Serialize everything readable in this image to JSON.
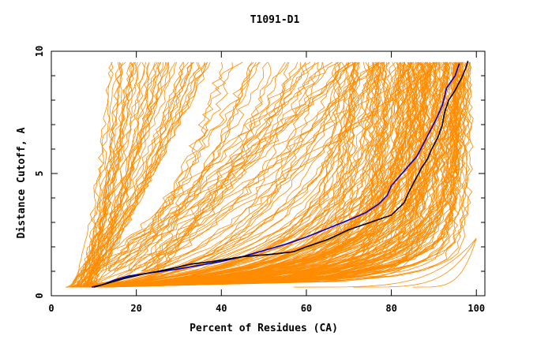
{
  "chart_data": {
    "type": "line",
    "title": "T1091-D1",
    "xlabel": "Percent of Residues (CA)",
    "ylabel": "Distance Cutoff, A",
    "xlim": [
      0,
      102
    ],
    "ylim": [
      0,
      10
    ],
    "x_ticks": [
      0,
      20,
      40,
      60,
      80,
      100
    ],
    "y_ticks": [
      0,
      5,
      10
    ],
    "grid": false,
    "legend": "none",
    "colors": {
      "background_series": "#ff8c00",
      "highlight_blue": "#0000cc",
      "highlight_black": "#000000",
      "axes": "#000000"
    },
    "series": [
      {
        "color": "#0000cc",
        "points": [
          [
            9.5,
            0.35
          ],
          [
            12,
            0.45
          ],
          [
            15,
            0.65
          ],
          [
            18,
            0.8
          ],
          [
            22,
            0.9
          ],
          [
            26,
            1.0
          ],
          [
            30,
            1.1
          ],
          [
            35,
            1.25
          ],
          [
            40,
            1.4
          ],
          [
            45,
            1.6
          ],
          [
            50,
            1.85
          ],
          [
            55,
            2.1
          ],
          [
            60,
            2.4
          ],
          [
            65,
            2.75
          ],
          [
            70,
            3.1
          ],
          [
            74,
            3.4
          ],
          [
            77,
            3.75
          ],
          [
            79,
            4.1
          ],
          [
            80,
            4.5
          ],
          [
            82,
            4.9
          ],
          [
            84,
            5.3
          ],
          [
            86,
            5.7
          ],
          [
            87.5,
            6.2
          ],
          [
            89,
            6.7
          ],
          [
            90.5,
            7.2
          ],
          [
            92,
            7.8
          ],
          [
            93,
            8.5
          ],
          [
            95,
            9.0
          ],
          [
            96,
            9.5
          ]
        ]
      },
      {
        "color": "#000000",
        "points": [
          [
            10,
            0.35
          ],
          [
            13,
            0.5
          ],
          [
            17,
            0.7
          ],
          [
            22,
            0.9
          ],
          [
            28,
            1.1
          ],
          [
            33,
            1.3
          ],
          [
            38,
            1.4
          ],
          [
            45,
            1.6
          ],
          [
            52,
            1.7
          ],
          [
            57,
            1.8
          ],
          [
            60,
            2.0
          ],
          [
            65,
            2.3
          ],
          [
            70,
            2.7
          ],
          [
            75,
            3.0
          ],
          [
            80,
            3.3
          ],
          [
            83,
            3.8
          ],
          [
            84,
            4.2
          ],
          [
            85.5,
            4.7
          ],
          [
            87,
            5.2
          ],
          [
            88.5,
            5.6
          ],
          [
            89.5,
            6.0
          ],
          [
            91,
            6.5
          ],
          [
            92,
            7.0
          ],
          [
            92.5,
            7.5
          ],
          [
            93.5,
            8.0
          ],
          [
            95,
            8.4
          ],
          [
            96.5,
            8.9
          ],
          [
            97.5,
            9.3
          ],
          [
            98,
            9.6
          ]
        ]
      }
    ]
  }
}
